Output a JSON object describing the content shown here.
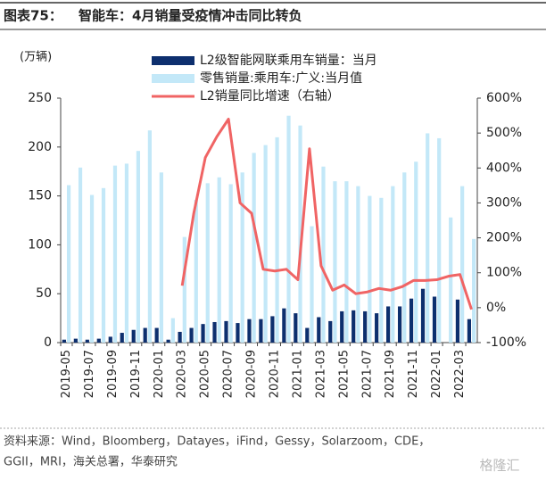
{
  "chart_data": {
    "type": "bar_line",
    "figure_label": "图表75：",
    "title": "智能车：4月销量受疫情冲击同比转负",
    "y_axis_label": "(万辆)",
    "categories": [
      "2019-05",
      null,
      "2019-07",
      null,
      "2019-09",
      null,
      "2019-11",
      null,
      "2020-01",
      null,
      "2020-03",
      null,
      "2020-05",
      null,
      "2020-07",
      null,
      "2020-09",
      null,
      "2020-11",
      null,
      "2021-01",
      null,
      "2021-03",
      null,
      "2021-05",
      null,
      "2021-07",
      null,
      "2021-09",
      null,
      "2021-11",
      null,
      "2022-01",
      null,
      "2022-03",
      null
    ],
    "series": [
      {
        "name": "L2级智能网联乘用车销量：当月",
        "color": "#0d2f6e",
        "kind": "bar",
        "values": [
          3,
          4,
          3,
          4,
          6,
          10,
          13,
          15,
          15,
          3,
          11,
          15,
          19,
          21,
          22,
          20,
          24,
          24,
          27,
          35,
          30,
          15,
          26,
          22,
          32,
          33,
          32,
          30,
          37,
          37,
          45,
          55,
          47,
          null,
          44,
          24
        ]
      },
      {
        "name": "零售销量:乘用车:广义:当月值",
        "color": "#c3e8f8",
        "kind": "bar",
        "values": [
          161,
          179,
          151,
          158,
          181,
          183,
          196,
          217,
          174,
          25,
          108,
          146,
          163,
          169,
          162,
          174,
          194,
          202,
          210,
          232,
          222,
          119,
          180,
          165,
          165,
          160,
          150,
          148,
          160,
          174,
          185,
          214,
          209,
          128,
          160,
          106
        ]
      },
      {
        "name": "L2销量同比增速（右轴）",
        "color": "#f06464",
        "kind": "line",
        "axis": "y2",
        "values": [
          null,
          null,
          null,
          null,
          null,
          null,
          null,
          null,
          null,
          null,
          63,
          270,
          430,
          490,
          540,
          300,
          270,
          110,
          105,
          110,
          80,
          455,
          120,
          50,
          65,
          40,
          45,
          55,
          50,
          60,
          78,
          78,
          80,
          90,
          95,
          -5
        ]
      }
    ],
    "ylim": [
      0,
      250
    ],
    "yticks": [
      0,
      50,
      100,
      150,
      200,
      250
    ],
    "y2lim": [
      -100,
      600
    ],
    "y2ticks": [
      {
        "value": -100,
        "label": "-100%"
      },
      {
        "value": 0,
        "label": "0%"
      },
      {
        "value": 100,
        "label": "100%"
      },
      {
        "value": 200,
        "label": "200%"
      },
      {
        "value": 300,
        "label": "300%"
      },
      {
        "value": 400,
        "label": "400%"
      },
      {
        "value": 500,
        "label": "500%"
      },
      {
        "value": 600,
        "label": "600%"
      }
    ],
    "source": [
      "资料来源：Wind，Bloomberg，Datayes，iFind，Gessy，Solarzoom，CDE，",
      "GGII，MRI，海关总署，华泰研究"
    ],
    "watermark": "格隆汇"
  }
}
